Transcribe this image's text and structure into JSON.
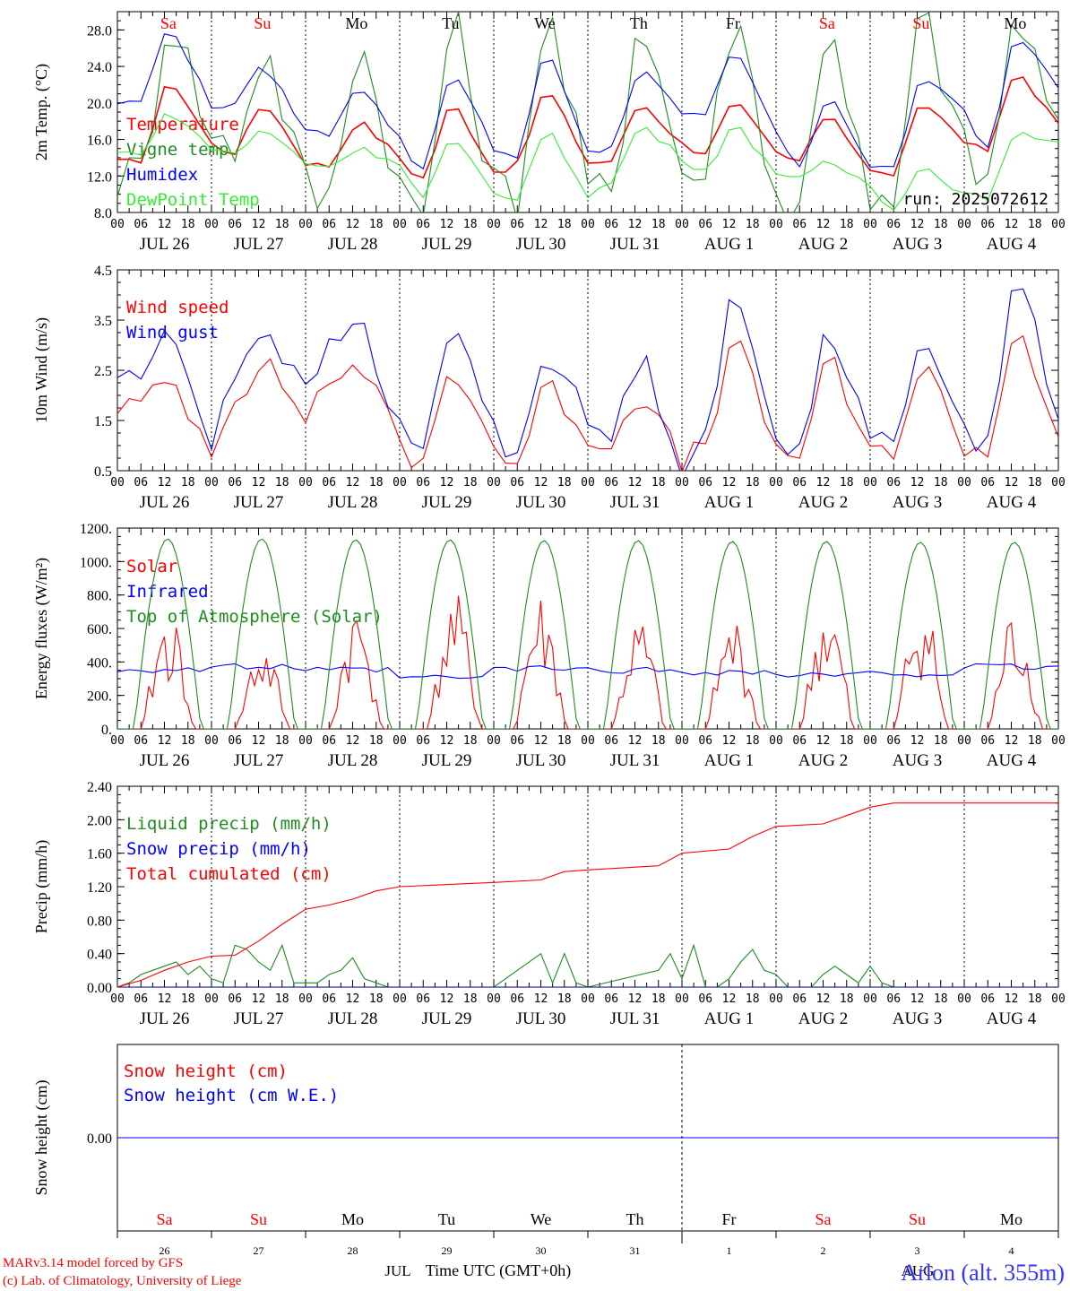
{
  "colors": {
    "red": "#ff0000",
    "green": "#1e8c1e",
    "blue": "#0000ff",
    "lightgreen": "#33ee33",
    "black": "#000000",
    "station": "#3333ff"
  },
  "timeline": {
    "start": "2025-07-26T00:00Z",
    "days": 10,
    "hour_ticks": [
      "00",
      "06",
      "12",
      "18"
    ],
    "day_labels": [
      "JUL 26",
      "JUL 27",
      "JUL 28",
      "JUL 29",
      "JUL 30",
      "JUL 31",
      "AUG  1",
      "AUG  2",
      "AUG  3",
      "AUG  4"
    ],
    "weekday_labels": [
      {
        "text": "Sa",
        "color": "red"
      },
      {
        "text": "Su",
        "color": "red"
      },
      {
        "text": "Mo",
        "color": "black"
      },
      {
        "text": "Tu",
        "color": "black"
      },
      {
        "text": "We",
        "color": "black"
      },
      {
        "text": "Th",
        "color": "black"
      },
      {
        "text": "Fr",
        "color": "black"
      },
      {
        "text": "Sa",
        "color": "red"
      },
      {
        "text": "Su",
        "color": "red"
      },
      {
        "text": "Mo",
        "color": "black"
      }
    ],
    "day_numbers": [
      "26",
      "27",
      "28",
      "29",
      "30",
      "31",
      "1",
      "2",
      "3",
      "4"
    ],
    "month_labels": [
      "JUL",
      "AUG"
    ]
  },
  "footer": {
    "credit1": "MARv3.14 model forced by GFS",
    "credit2": "(c) Lab. of Climatology, University of Liege",
    "xlabel": "Time UTC (GMT+0h)",
    "station": "Arlon (alt. 355m)"
  },
  "chart_data": [
    {
      "id": "temperature",
      "type": "line",
      "ylabel": "2m Temp. (°C)",
      "ylim": [
        8.0,
        30.0
      ],
      "yticks": [
        "8.0",
        "12.0",
        "16.0",
        "20.0",
        "24.0",
        "28.0"
      ],
      "annotation": "run: 2025072612",
      "grid": false,
      "series": [
        {
          "name": "Temperature",
          "color": "red",
          "minmax": [
            [
              13.5,
              22.5,
              15.5
            ],
            [
              14.5,
              20.0,
              13.5
            ],
            [
              13.0,
              18.0,
              14.0
            ],
            [
              11.5,
              20.0,
              12.5
            ],
            [
              13.0,
              21.5,
              13.5
            ],
            [
              13.5,
              20.0,
              15.5
            ],
            [
              14.5,
              20.0,
              14.5
            ],
            [
              13.5,
              19.0,
              12.5
            ],
            [
              12.0,
              20.0,
              16.0
            ],
            [
              14.5,
              23.5,
              17.5
            ]
          ]
        },
        {
          "name": "Vigne temp",
          "color": "green",
          "minmax": [
            [
              12.0,
              30.0,
              16.0
            ],
            [
              15.0,
              26.0,
              11.0
            ],
            [
              9.0,
              27.0,
              11.0
            ],
            [
              7.0,
              29.0,
              11.0
            ],
            [
              9.5,
              30.0,
              10.5
            ],
            [
              10.0,
              30.0,
              12.5
            ],
            [
              12.0,
              30.0,
              10.0
            ],
            [
              7.5,
              30.0,
              8.0
            ],
            [
              8.0,
              30.0,
              14.5
            ],
            [
              11.0,
              30.0,
              15.5
            ]
          ]
        },
        {
          "name": "Humidex",
          "color": "blue",
          "minmax": [
            [
              20.0,
              28.5,
              19.5
            ],
            [
              20.0,
              24.0,
              17.0
            ],
            [
              16.5,
              22.0,
              16.0
            ],
            [
              12.5,
              23.5,
              15.0
            ],
            [
              14.0,
              25.5,
              14.5
            ],
            [
              15.0,
              23.5,
              19.0
            ],
            [
              18.5,
              26.0,
              17.0
            ],
            [
              12.5,
              21.0,
              13.0
            ],
            [
              12.5,
              23.0,
              19.0
            ],
            [
              14.5,
              27.5,
              22.0
            ]
          ]
        },
        {
          "name": "DewPoint Temp",
          "color": "lightgreen",
          "minmax": [
            [
              14.5,
              19.0,
              15.0
            ],
            [
              14.5,
              17.0,
              13.5
            ],
            [
              13.0,
              15.0,
              13.5
            ],
            [
              9.5,
              16.0,
              10.0
            ],
            [
              9.5,
              17.0,
              10.0
            ],
            [
              11.0,
              17.5,
              14.0
            ],
            [
              12.5,
              17.5,
              12.5
            ],
            [
              11.5,
              13.5,
              11.0
            ],
            [
              8.5,
              13.0,
              10.0
            ],
            [
              9.5,
              16.5,
              16.0
            ]
          ]
        }
      ]
    },
    {
      "id": "wind",
      "type": "line",
      "ylabel": "10m Wind (m/s)",
      "ylim": [
        0.5,
        4.5
      ],
      "yticks": [
        "0.5",
        "1.5",
        "2.5",
        "3.5",
        "4.5"
      ],
      "grid": false,
      "series": [
        {
          "name": "Wind speed",
          "color": "red",
          "minmax": [
            [
              1.8,
              2.3,
              0.9
            ],
            [
              2.0,
              2.6,
              1.6
            ],
            [
              2.2,
              2.7,
              1.0
            ],
            [
              0.6,
              2.6,
              1.0
            ],
            [
              0.6,
              2.2,
              1.2
            ],
            [
              1.0,
              2.1,
              0.6
            ],
            [
              1.0,
              3.1,
              0.9
            ],
            [
              0.8,
              2.7,
              0.8
            ],
            [
              0.9,
              2.6,
              1.0
            ],
            [
              0.8,
              3.4,
              1.2
            ]
          ]
        },
        {
          "name": "Wind gust",
          "color": "blue",
          "minmax": [
            [
              2.4,
              3.2,
              1.1
            ],
            [
              2.4,
              3.4,
              2.0
            ],
            [
              2.9,
              3.5,
              1.3
            ],
            [
              0.8,
              3.5,
              1.3
            ],
            [
              0.8,
              2.9,
              1.5
            ],
            [
              1.1,
              2.8,
              0.6
            ],
            [
              1.2,
              4.0,
              1.1
            ],
            [
              1.0,
              3.4,
              1.0
            ],
            [
              1.1,
              3.3,
              1.2
            ],
            [
              1.1,
              4.5,
              1.5
            ]
          ]
        }
      ]
    },
    {
      "id": "energy",
      "type": "line",
      "ylabel": "Energy fluxes (W/m²)",
      "ylim": [
        0,
        1200
      ],
      "yticks": [
        "0.",
        "200.",
        "400.",
        "600.",
        "800.",
        "1000.",
        "1200."
      ],
      "grid": false,
      "series": [
        {
          "name": "Solar",
          "color": "red",
          "daily_peak": [
            730,
            550,
            770,
            820,
            830,
            680,
            700,
            800,
            830,
            750
          ],
          "daily_peak_hour": [
            13,
            13,
            13,
            14,
            12,
            13,
            13,
            13,
            13,
            13
          ]
        },
        {
          "name": "Infrared",
          "color": "blue",
          "daily_level": [
            355,
            370,
            350,
            305,
            360,
            350,
            340,
            320,
            330,
            370
          ]
        },
        {
          "name": "Top of Atmosphere (Solar)",
          "color": "green",
          "daily_peak": [
            1135,
            1135,
            1130,
            1130,
            1125,
            1125,
            1120,
            1120,
            1115,
            1115
          ]
        }
      ]
    },
    {
      "id": "precip",
      "type": "line",
      "ylabel": "Precip (mm/h)",
      "ylim": [
        0.0,
        2.4
      ],
      "yticks": [
        "0.00",
        "0.40",
        "0.80",
        "1.20",
        "1.60",
        "2.00",
        "2.40"
      ],
      "grid": false,
      "series": [
        {
          "name": "Liquid precip (mm/h)",
          "color": "green",
          "points": [
            [
              0,
              0.0
            ],
            [
              3,
              0.05
            ],
            [
              6,
              0.15
            ],
            [
              9,
              0.2
            ],
            [
              12,
              0.25
            ],
            [
              15,
              0.3
            ],
            [
              18,
              0.15
            ],
            [
              21,
              0.25
            ],
            [
              24,
              0.1
            ],
            [
              27,
              0.05
            ],
            [
              30,
              0.5
            ],
            [
              33,
              0.45
            ],
            [
              36,
              0.3
            ],
            [
              39,
              0.2
            ],
            [
              42,
              0.5
            ],
            [
              45,
              0.05
            ],
            [
              48,
              0.05
            ],
            [
              51,
              0.05
            ],
            [
              54,
              0.15
            ],
            [
              57,
              0.2
            ],
            [
              60,
              0.35
            ],
            [
              63,
              0.1
            ],
            [
              66,
              0.05
            ],
            [
              69,
              0.0
            ],
            [
              96,
              0.0
            ],
            [
              108,
              0.4
            ],
            [
              111,
              0.05
            ],
            [
              114,
              0.4
            ],
            [
              117,
              0.05
            ],
            [
              120,
              0.0
            ],
            [
              138,
              0.2
            ],
            [
              141,
              0.4
            ],
            [
              144,
              0.1
            ],
            [
              147,
              0.5
            ],
            [
              150,
              0.0
            ],
            [
              153,
              0.0
            ],
            [
              156,
              0.1
            ],
            [
              159,
              0.3
            ],
            [
              162,
              0.45
            ],
            [
              165,
              0.2
            ],
            [
              168,
              0.15
            ],
            [
              171,
              0.0
            ],
            [
              177,
              0.0
            ],
            [
              180,
              0.15
            ],
            [
              183,
              0.25
            ],
            [
              186,
              0.15
            ],
            [
              189,
              0.05
            ],
            [
              192,
              0.25
            ],
            [
              195,
              0.05
            ],
            [
              198,
              0.0
            ],
            [
              240,
              0.0
            ]
          ]
        },
        {
          "name": "Snow precip (mm/h)",
          "color": "blue",
          "points": [
            [
              0,
              0.0
            ],
            [
              240,
              0.0
            ]
          ]
        },
        {
          "name": "Total cumulated (cm)",
          "color": "red",
          "points": [
            [
              0,
              0.0
            ],
            [
              6,
              0.08
            ],
            [
              12,
              0.2
            ],
            [
              18,
              0.3
            ],
            [
              24,
              0.37
            ],
            [
              30,
              0.38
            ],
            [
              36,
              0.55
            ],
            [
              42,
              0.75
            ],
            [
              48,
              0.93
            ],
            [
              54,
              0.98
            ],
            [
              60,
              1.05
            ],
            [
              66,
              1.15
            ],
            [
              72,
              1.2
            ],
            [
              96,
              1.25
            ],
            [
              108,
              1.28
            ],
            [
              114,
              1.38
            ],
            [
              120,
              1.4
            ],
            [
              138,
              1.45
            ],
            [
              144,
              1.6
            ],
            [
              156,
              1.65
            ],
            [
              162,
              1.8
            ],
            [
              168,
              1.92
            ],
            [
              180,
              1.95
            ],
            [
              186,
              2.05
            ],
            [
              192,
              2.15
            ],
            [
              198,
              2.2
            ],
            [
              240,
              2.2
            ]
          ]
        }
      ]
    },
    {
      "id": "snow",
      "type": "line",
      "ylabel": "Snow height (cm)",
      "ylim": [
        -1,
        1
      ],
      "yticks": [
        "0.00"
      ],
      "grid": false,
      "series": [
        {
          "name": "Snow height (cm)",
          "color": "red",
          "points": [
            [
              0,
              0.0
            ],
            [
              240,
              0.0
            ]
          ]
        },
        {
          "name": "Snow height (cm W.E.)",
          "color": "blue",
          "points": [
            [
              0,
              0.0
            ],
            [
              240,
              0.0
            ]
          ]
        }
      ]
    }
  ]
}
